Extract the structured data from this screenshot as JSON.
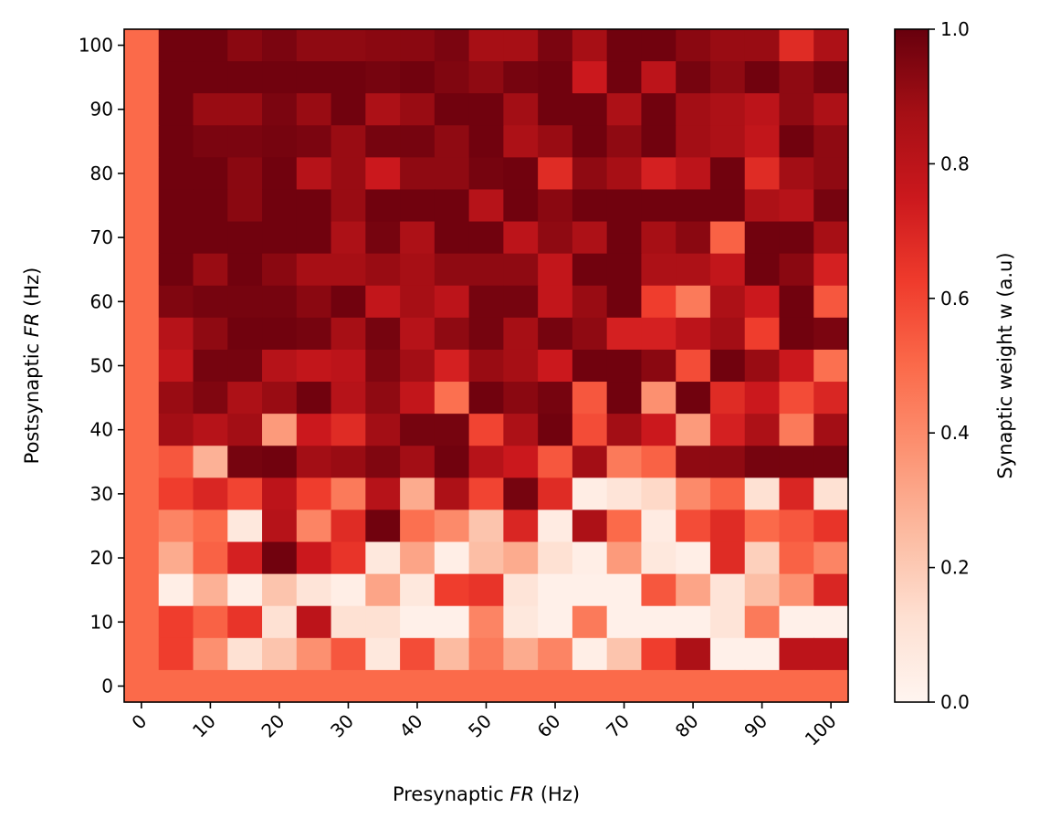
{
  "chart_data": {
    "type": "heatmap",
    "xlabel": {
      "prefix": "Presynaptic ",
      "italic": "FR",
      "suffix": " (Hz)"
    },
    "ylabel": {
      "prefix": "Postsynaptic ",
      "italic": "FR",
      "suffix": " (Hz)"
    },
    "colorbar_label": "Synaptic weight w (a.u)",
    "colormap": "Reds",
    "x_step": 5,
    "y_step": 5,
    "xlim": [
      -2.5,
      102.5
    ],
    "ylim": [
      -2.5,
      102.5
    ],
    "clim": [
      0,
      1
    ],
    "x_ticks": [
      "0",
      "10",
      "20",
      "30",
      "40",
      "50",
      "60",
      "70",
      "80",
      "90",
      "100"
    ],
    "y_ticks": [
      "0",
      "10",
      "20",
      "30",
      "40",
      "50",
      "60",
      "70",
      "80",
      "90",
      "100"
    ],
    "colorbar_ticks": [
      "0.0",
      "0.2",
      "0.4",
      "0.6",
      "0.8",
      "1.0"
    ],
    "x_tick_values": [
      0,
      10,
      20,
      30,
      40,
      50,
      60,
      70,
      80,
      90,
      100
    ],
    "y_tick_values": [
      0,
      10,
      20,
      30,
      40,
      50,
      60,
      70,
      80,
      90,
      100
    ],
    "colorbar_tick_values": [
      0,
      0.2,
      0.4,
      0.6,
      0.8,
      1.0
    ],
    "rows_note": "rows ordered from postsynaptic FR 100 Hz (top) down to 0 Hz (bottom); columns from presynaptic FR 0 Hz to 100 Hz",
    "values": [
      [
        0.5,
        0.98,
        0.98,
        0.93,
        0.96,
        0.92,
        0.92,
        0.93,
        0.93,
        0.96,
        0.87,
        0.87,
        0.96,
        0.87,
        0.98,
        0.98,
        0.93,
        0.9,
        0.9,
        0.68,
        0.85
      ],
      [
        0.5,
        0.98,
        0.98,
        0.98,
        0.98,
        0.98,
        0.98,
        0.97,
        0.98,
        0.95,
        0.92,
        0.97,
        0.98,
        0.75,
        0.98,
        0.8,
        0.97,
        0.92,
        0.98,
        0.92,
        0.97
      ],
      [
        0.5,
        0.98,
        0.9,
        0.9,
        0.96,
        0.9,
        0.98,
        0.85,
        0.9,
        0.98,
        0.98,
        0.88,
        0.98,
        0.98,
        0.85,
        0.98,
        0.88,
        0.85,
        0.8,
        0.92,
        0.85
      ],
      [
        0.5,
        0.98,
        0.96,
        0.96,
        0.97,
        0.96,
        0.9,
        0.97,
        0.97,
        0.92,
        0.98,
        0.85,
        0.9,
        0.98,
        0.92,
        0.98,
        0.88,
        0.85,
        0.78,
        0.98,
        0.92
      ],
      [
        0.5,
        0.98,
        0.98,
        0.93,
        0.98,
        0.82,
        0.9,
        0.75,
        0.92,
        0.92,
        0.97,
        0.98,
        0.68,
        0.92,
        0.87,
        0.72,
        0.8,
        0.98,
        0.68,
        0.88,
        0.92
      ],
      [
        0.5,
        0.98,
        0.98,
        0.93,
        0.98,
        0.98,
        0.9,
        0.98,
        0.98,
        0.98,
        0.82,
        0.98,
        0.93,
        0.98,
        0.98,
        0.98,
        0.98,
        0.98,
        0.85,
        0.82,
        0.97
      ],
      [
        0.5,
        0.98,
        0.98,
        0.98,
        0.98,
        0.98,
        0.85,
        0.97,
        0.85,
        0.98,
        0.98,
        0.8,
        0.92,
        0.85,
        0.98,
        0.87,
        0.93,
        0.52,
        0.98,
        0.98,
        0.87
      ],
      [
        0.5,
        0.98,
        0.9,
        0.98,
        0.93,
        0.87,
        0.87,
        0.9,
        0.87,
        0.92,
        0.92,
        0.92,
        0.78,
        0.98,
        0.98,
        0.85,
        0.85,
        0.78,
        0.98,
        0.93,
        0.72
      ],
      [
        0.5,
        0.95,
        0.97,
        0.97,
        0.97,
        0.93,
        0.98,
        0.78,
        0.87,
        0.8,
        0.97,
        0.97,
        0.78,
        0.9,
        0.98,
        0.62,
        0.45,
        0.85,
        0.75,
        0.98,
        0.55
      ],
      [
        0.5,
        0.82,
        0.92,
        0.98,
        0.98,
        0.97,
        0.87,
        0.97,
        0.82,
        0.92,
        0.97,
        0.87,
        0.97,
        0.92,
        0.72,
        0.72,
        0.8,
        0.88,
        0.62,
        0.98,
        0.96
      ],
      [
        0.5,
        0.78,
        0.97,
        0.97,
        0.82,
        0.78,
        0.8,
        0.95,
        0.88,
        0.72,
        0.9,
        0.87,
        0.75,
        0.98,
        0.98,
        0.93,
        0.58,
        0.98,
        0.9,
        0.75,
        0.48
      ],
      [
        0.5,
        0.9,
        0.95,
        0.85,
        0.9,
        0.98,
        0.82,
        0.92,
        0.78,
        0.48,
        0.98,
        0.93,
        0.97,
        0.55,
        0.98,
        0.38,
        0.98,
        0.68,
        0.75,
        0.58,
        0.7
      ],
      [
        0.5,
        0.88,
        0.82,
        0.88,
        0.35,
        0.75,
        0.68,
        0.88,
        0.97,
        0.97,
        0.6,
        0.85,
        0.98,
        0.58,
        0.88,
        0.75,
        0.35,
        0.72,
        0.85,
        0.45,
        0.88
      ],
      [
        0.5,
        0.55,
        0.28,
        0.97,
        0.98,
        0.88,
        0.9,
        0.95,
        0.88,
        0.98,
        0.82,
        0.75,
        0.55,
        0.88,
        0.45,
        0.52,
        0.92,
        0.92,
        0.97,
        0.97,
        0.97
      ],
      [
        0.5,
        0.62,
        0.7,
        0.6,
        0.8,
        0.62,
        0.45,
        0.82,
        0.3,
        0.85,
        0.6,
        0.97,
        0.68,
        0.05,
        0.1,
        0.15,
        0.4,
        0.52,
        0.12,
        0.7,
        0.12
      ],
      [
        0.5,
        0.42,
        0.5,
        0.08,
        0.82,
        0.42,
        0.68,
        0.98,
        0.48,
        0.4,
        0.22,
        0.7,
        0.06,
        0.85,
        0.5,
        0.06,
        0.58,
        0.68,
        0.5,
        0.55,
        0.65
      ],
      [
        0.5,
        0.3,
        0.52,
        0.72,
        0.98,
        0.75,
        0.65,
        0.08,
        0.32,
        0.04,
        0.24,
        0.3,
        0.12,
        0.04,
        0.35,
        0.08,
        0.04,
        0.68,
        0.18,
        0.52,
        0.42
      ],
      [
        0.5,
        0.04,
        0.28,
        0.04,
        0.22,
        0.1,
        0.04,
        0.32,
        0.08,
        0.62,
        0.65,
        0.1,
        0.03,
        0.03,
        0.03,
        0.55,
        0.32,
        0.1,
        0.24,
        0.38,
        0.7
      ],
      [
        0.5,
        0.62,
        0.52,
        0.65,
        0.12,
        0.8,
        0.12,
        0.12,
        0.03,
        0.03,
        0.42,
        0.08,
        0.03,
        0.45,
        0.03,
        0.03,
        0.03,
        0.1,
        0.45,
        0.03,
        0.03
      ],
      [
        0.5,
        0.62,
        0.38,
        0.12,
        0.22,
        0.38,
        0.55,
        0.08,
        0.58,
        0.25,
        0.45,
        0.3,
        0.42,
        0.04,
        0.22,
        0.62,
        0.85,
        0.03,
        0.03,
        0.8,
        0.8
      ],
      [
        0.5,
        0.5,
        0.5,
        0.5,
        0.5,
        0.5,
        0.5,
        0.5,
        0.5,
        0.5,
        0.5,
        0.5,
        0.5,
        0.5,
        0.5,
        0.5,
        0.5,
        0.5,
        0.5,
        0.5,
        0.5
      ]
    ]
  }
}
